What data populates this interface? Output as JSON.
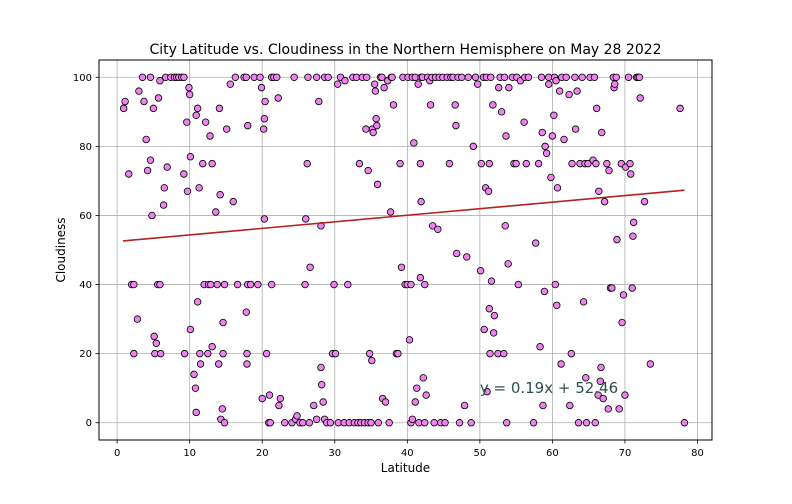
{
  "chart_data": {
    "type": "scatter",
    "title": "City Latitude vs. Cloudiness in the Northern Hemisphere on  May 28 2022",
    "xlabel": "Latitude",
    "ylabel": "Cloudiness",
    "xlim": [
      -2.5,
      82
    ],
    "ylim": [
      -5,
      105
    ],
    "xticks": [
      0,
      10,
      20,
      30,
      40,
      50,
      60,
      70,
      80
    ],
    "yticks": [
      0,
      20,
      40,
      60,
      80,
      100
    ],
    "grid": true,
    "marker_face_color": "#ee82ee",
    "marker_edge_color": "#000000",
    "regression": {
      "slope": 0.19,
      "intercept": 52.46,
      "x_range": [
        0.8,
        78.2
      ],
      "color": "#b22222",
      "equation": "y = 0.19x + 52.46",
      "annotation_at": [
        50,
        10
      ]
    },
    "points": [
      [
        0.9,
        91
      ],
      [
        1.1,
        93
      ],
      [
        1.6,
        72
      ],
      [
        2,
        40
      ],
      [
        2.3,
        40
      ],
      [
        2.3,
        20
      ],
      [
        2.8,
        30
      ],
      [
        3,
        96
      ],
      [
        3.5,
        100
      ],
      [
        3.7,
        93
      ],
      [
        4,
        82
      ],
      [
        4.2,
        73
      ],
      [
        4.6,
        100
      ],
      [
        4.8,
        60
      ],
      [
        4.6,
        76
      ],
      [
        5,
        91
      ],
      [
        5.1,
        25
      ],
      [
        5.2,
        20
      ],
      [
        5.4,
        23
      ],
      [
        5.7,
        94
      ],
      [
        5.9,
        99
      ],
      [
        5.6,
        40
      ],
      [
        5.9,
        40
      ],
      [
        6,
        20
      ],
      [
        6.4,
        63
      ],
      [
        6.5,
        68
      ],
      [
        6.7,
        100
      ],
      [
        6.9,
        74
      ],
      [
        7.4,
        100
      ],
      [
        7.9,
        100
      ],
      [
        8.2,
        100
      ],
      [
        8.5,
        100
      ],
      [
        8.9,
        100
      ],
      [
        9.2,
        100
      ],
      [
        9.2,
        72
      ],
      [
        9.3,
        20
      ],
      [
        9.6,
        87
      ],
      [
        9.7,
        67
      ],
      [
        9.9,
        97
      ],
      [
        10,
        95
      ],
      [
        10.1,
        77
      ],
      [
        10.1,
        27
      ],
      [
        10.6,
        14
      ],
      [
        10.8,
        10
      ],
      [
        10.9,
        3
      ],
      [
        10.9,
        89
      ],
      [
        11.1,
        91
      ],
      [
        11.1,
        35
      ],
      [
        11.3,
        68
      ],
      [
        11.4,
        20
      ],
      [
        11.5,
        17
      ],
      [
        11.8,
        75
      ],
      [
        12,
        40
      ],
      [
        12.2,
        87
      ],
      [
        12.5,
        20
      ],
      [
        12.6,
        40
      ],
      [
        12.8,
        83
      ],
      [
        12.9,
        40
      ],
      [
        13.1,
        75
      ],
      [
        13.1,
        22
      ],
      [
        13.6,
        61
      ],
      [
        13.8,
        40
      ],
      [
        14,
        17
      ],
      [
        14.1,
        91
      ],
      [
        14.2,
        66
      ],
      [
        14.3,
        1
      ],
      [
        14.5,
        4
      ],
      [
        14.6,
        20
      ],
      [
        14.6,
        29
      ],
      [
        14.8,
        0
      ],
      [
        14.8,
        40
      ],
      [
        15.1,
        85
      ],
      [
        15.6,
        98
      ],
      [
        16,
        64
      ],
      [
        16.3,
        100
      ],
      [
        16.6,
        40
      ],
      [
        17.5,
        100
      ],
      [
        17.8,
        100
      ],
      [
        17.8,
        32
      ],
      [
        17.9,
        20
      ],
      [
        18,
        86
      ],
      [
        18,
        40
      ],
      [
        17.9,
        17
      ],
      [
        18.4,
        40
      ],
      [
        18.9,
        100
      ],
      [
        19.4,
        40
      ],
      [
        19.7,
        100
      ],
      [
        19.9,
        97
      ],
      [
        20,
        7
      ],
      [
        20.2,
        85
      ],
      [
        20.3,
        59
      ],
      [
        20.4,
        93
      ],
      [
        20.3,
        88
      ],
      [
        20.6,
        20
      ],
      [
        20.9,
        0
      ],
      [
        21,
        8
      ],
      [
        21.1,
        0
      ],
      [
        21.3,
        40
      ],
      [
        21.3,
        100
      ],
      [
        21.6,
        100
      ],
      [
        22,
        100
      ],
      [
        22.2,
        94
      ],
      [
        22.3,
        5
      ],
      [
        22.5,
        7
      ],
      [
        23.1,
        0
      ],
      [
        24.1,
        0
      ],
      [
        24.4,
        100
      ],
      [
        24.6,
        1
      ],
      [
        24.8,
        2
      ],
      [
        25.2,
        0
      ],
      [
        25.6,
        0
      ],
      [
        25.9,
        40
      ],
      [
        26,
        59
      ],
      [
        26.2,
        75
      ],
      [
        26.3,
        100
      ],
      [
        26.5,
        0
      ],
      [
        26.6,
        45
      ],
      [
        27.1,
        5
      ],
      [
        27.5,
        1
      ],
      [
        27.5,
        100
      ],
      [
        27.8,
        93
      ],
      [
        28.1,
        16
      ],
      [
        28.1,
        57
      ],
      [
        28.2,
        11
      ],
      [
        28.4,
        6
      ],
      [
        28.6,
        100
      ],
      [
        28.6,
        1
      ],
      [
        28.9,
        0
      ],
      [
        29.1,
        100
      ],
      [
        29.4,
        0
      ],
      [
        29.7,
        20
      ],
      [
        29.9,
        40
      ],
      [
        30.1,
        20
      ],
      [
        30.4,
        98
      ],
      [
        30.5,
        0
      ],
      [
        30.8,
        100
      ],
      [
        31.3,
        0
      ],
      [
        31.4,
        99
      ],
      [
        31.8,
        40
      ],
      [
        32,
        0
      ],
      [
        32.5,
        100
      ],
      [
        32.7,
        0
      ],
      [
        33,
        100
      ],
      [
        33.2,
        0
      ],
      [
        33.4,
        75
      ],
      [
        33.6,
        0
      ],
      [
        33.8,
        100
      ],
      [
        34.1,
        0
      ],
      [
        34.3,
        85
      ],
      [
        34.4,
        100
      ],
      [
        34.6,
        0
      ],
      [
        34.6,
        73
      ],
      [
        34.8,
        20
      ],
      [
        35,
        0
      ],
      [
        35.1,
        18
      ],
      [
        35.2,
        85
      ],
      [
        35.3,
        84
      ],
      [
        35.5,
        98
      ],
      [
        35.6,
        96
      ],
      [
        35.7,
        88
      ],
      [
        35.8,
        86
      ],
      [
        35.9,
        69
      ],
      [
        36,
        0
      ],
      [
        36.3,
        100
      ],
      [
        36.5,
        100
      ],
      [
        36.6,
        7
      ],
      [
        36.8,
        97
      ],
      [
        37,
        6
      ],
      [
        37.3,
        99
      ],
      [
        37.5,
        0
      ],
      [
        37.7,
        61
      ],
      [
        37.8,
        100
      ],
      [
        37.9,
        100
      ],
      [
        38.1,
        92
      ],
      [
        38.5,
        20
      ],
      [
        38.7,
        20
      ],
      [
        39,
        75
      ],
      [
        39.2,
        45
      ],
      [
        39.4,
        100
      ],
      [
        39.7,
        40
      ],
      [
        40,
        40
      ],
      [
        40.1,
        100
      ],
      [
        40.3,
        24
      ],
      [
        40.5,
        0
      ],
      [
        40.5,
        40
      ],
      [
        40.7,
        1
      ],
      [
        40.7,
        100
      ],
      [
        40.9,
        81
      ],
      [
        41.1,
        100
      ],
      [
        41.1,
        6
      ],
      [
        41.3,
        10
      ],
      [
        41.5,
        98
      ],
      [
        41.6,
        0
      ],
      [
        41.8,
        75
      ],
      [
        41.8,
        42
      ],
      [
        41.9,
        100
      ],
      [
        41.9,
        64
      ],
      [
        42.1,
        100
      ],
      [
        42.2,
        13
      ],
      [
        42.4,
        0
      ],
      [
        42.4,
        40
      ],
      [
        42.6,
        8
      ],
      [
        42.8,
        100
      ],
      [
        43.1,
        99
      ],
      [
        43.2,
        92
      ],
      [
        43.4,
        100
      ],
      [
        43.5,
        57
      ],
      [
        43.7,
        0
      ],
      [
        43.9,
        100
      ],
      [
        44.2,
        56
      ],
      [
        44.4,
        100
      ],
      [
        44.6,
        0
      ],
      [
        44.9,
        100
      ],
      [
        45.2,
        0
      ],
      [
        45.5,
        100
      ],
      [
        45.8,
        75
      ],
      [
        46,
        100
      ],
      [
        46.3,
        100
      ],
      [
        46.6,
        92
      ],
      [
        46.7,
        86
      ],
      [
        46.8,
        49
      ],
      [
        47,
        100
      ],
      [
        47.2,
        0
      ],
      [
        47.5,
        100
      ],
      [
        47.9,
        5
      ],
      [
        48.2,
        48
      ],
      [
        48.4,
        100
      ],
      [
        48.8,
        0
      ],
      [
        49.1,
        80
      ],
      [
        49.4,
        100
      ],
      [
        49.7,
        98
      ],
      [
        50.1,
        44
      ],
      [
        50.2,
        75
      ],
      [
        50.5,
        100
      ],
      [
        50.6,
        27
      ],
      [
        50.8,
        68
      ],
      [
        50.9,
        100
      ],
      [
        51,
        9
      ],
      [
        51.2,
        67
      ],
      [
        51.3,
        75
      ],
      [
        51.3,
        33
      ],
      [
        51.4,
        20
      ],
      [
        51.5,
        100
      ],
      [
        51.6,
        41
      ],
      [
        51.8,
        92
      ],
      [
        51.9,
        26
      ],
      [
        52,
        31
      ],
      [
        52.5,
        20
      ],
      [
        52.6,
        97
      ],
      [
        52.8,
        100
      ],
      [
        53,
        90
      ],
      [
        53.3,
        20
      ],
      [
        53.4,
        100
      ],
      [
        53.5,
        57
      ],
      [
        53.6,
        83
      ],
      [
        53.7,
        0
      ],
      [
        53.9,
        46
      ],
      [
        54,
        97
      ],
      [
        54.5,
        100
      ],
      [
        54.7,
        75
      ],
      [
        55,
        75
      ],
      [
        55.1,
        100
      ],
      [
        55.3,
        40
      ],
      [
        55.6,
        99
      ],
      [
        56.1,
        87
      ],
      [
        56.2,
        100
      ],
      [
        56.4,
        75
      ],
      [
        56.7,
        100
      ],
      [
        57.4,
        0
      ],
      [
        57.7,
        52
      ],
      [
        58.1,
        75
      ],
      [
        58.3,
        22
      ],
      [
        58.5,
        100
      ],
      [
        58.6,
        84
      ],
      [
        58.7,
        5
      ],
      [
        58.9,
        38
      ],
      [
        59,
        80
      ],
      [
        59.2,
        78
      ],
      [
        59.5,
        98
      ],
      [
        59.5,
        100
      ],
      [
        59.8,
        71
      ],
      [
        60,
        83
      ],
      [
        60.2,
        89
      ],
      [
        60.3,
        100
      ],
      [
        60.4,
        40
      ],
      [
        60.5,
        99
      ],
      [
        60.6,
        34
      ],
      [
        60.7,
        68
      ],
      [
        61,
        96
      ],
      [
        61.2,
        17
      ],
      [
        61.3,
        100
      ],
      [
        61.6,
        82
      ],
      [
        61.9,
        100
      ],
      [
        62.3,
        95
      ],
      [
        62.4,
        5
      ],
      [
        62.6,
        20
      ],
      [
        62.7,
        75
      ],
      [
        63.1,
        100
      ],
      [
        63.2,
        85
      ],
      [
        63.4,
        96
      ],
      [
        63.6,
        0
      ],
      [
        63.8,
        75
      ],
      [
        64.1,
        100
      ],
      [
        64.3,
        35
      ],
      [
        64.5,
        75
      ],
      [
        64.6,
        13
      ],
      [
        64.7,
        0
      ],
      [
        64.9,
        75
      ],
      [
        65.2,
        100
      ],
      [
        65.6,
        76
      ],
      [
        65.8,
        100
      ],
      [
        65.9,
        0
      ],
      [
        66,
        75
      ],
      [
        66.1,
        91
      ],
      [
        66.3,
        8
      ],
      [
        66.4,
        67
      ],
      [
        66.6,
        12
      ],
      [
        66.7,
        16
      ],
      [
        66.8,
        84
      ],
      [
        67,
        7
      ],
      [
        67.2,
        64
      ],
      [
        67.5,
        75
      ],
      [
        67.7,
        4
      ],
      [
        67.8,
        73
      ],
      [
        68,
        39
      ],
      [
        68.2,
        39
      ],
      [
        68.4,
        100
      ],
      [
        68.5,
        97
      ],
      [
        68.6,
        98
      ],
      [
        68.8,
        100
      ],
      [
        68.9,
        53
      ],
      [
        69.2,
        4
      ],
      [
        69.5,
        75
      ],
      [
        69.6,
        29
      ],
      [
        69.8,
        37
      ],
      [
        70,
        8
      ],
      [
        70.1,
        74
      ],
      [
        70.5,
        100
      ],
      [
        70.7,
        75
      ],
      [
        70.8,
        72
      ],
      [
        71,
        39
      ],
      [
        71.1,
        54
      ],
      [
        71.2,
        58
      ],
      [
        71.6,
        100
      ],
      [
        71.8,
        100
      ],
      [
        72,
        100
      ],
      [
        72.1,
        94
      ],
      [
        72.7,
        64
      ],
      [
        73.5,
        17
      ],
      [
        77.6,
        91
      ],
      [
        78.2,
        0
      ]
    ]
  }
}
